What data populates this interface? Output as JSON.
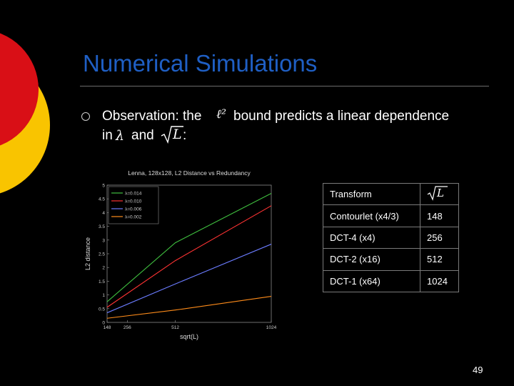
{
  "slide": {
    "title": "Numerical Simulations",
    "page_number": "49",
    "colors": {
      "title": "#1f5fc4",
      "deco_red": "#d90f16",
      "deco_yellow": "#f9c400"
    }
  },
  "observation": {
    "bullet_icon": "hollow-circle-bullet",
    "line1_a": "Observation: the",
    "line1_math": "ℓ²",
    "line1_b": "bound predicts a linear dependence",
    "line2_a": "in",
    "line2_lambda": "λ",
    "line2_and": "and",
    "line2_sqrtL": "L",
    "line2_colon": ":"
  },
  "table": {
    "header": {
      "transform": "Transform",
      "sqrtL": "L"
    },
    "rows": [
      {
        "transform": "Contourlet (x4/3)",
        "value": "148"
      },
      {
        "transform": "DCT-4 (x4)",
        "value": "256"
      },
      {
        "transform": "DCT-2 (x16)",
        "value": "512"
      },
      {
        "transform": "DCT-1 (x64)",
        "value": "1024"
      }
    ]
  },
  "chart_data": {
    "type": "line",
    "title": "Lenna, 128x128, L2 Distance vs Redundancy",
    "xlabel": "sqrt(L)",
    "ylabel": "L2 distance",
    "xticks": [
      "148",
      "256",
      "512",
      "1024"
    ],
    "yticks": [
      "0",
      "0.5",
      "1",
      "1.5",
      "2",
      "2.5",
      "3",
      "3.5",
      "4",
      "4.5",
      "5"
    ],
    "x": [
      148,
      512,
      1024
    ],
    "ylim": [
      0,
      5
    ],
    "legend_position": "top-left",
    "series": [
      {
        "name": "λ=0.014",
        "color": "#3fbf3f",
        "values": [
          0.75,
          2.9,
          4.7
        ]
      },
      {
        "name": "λ=0.010",
        "color": "#ff3333",
        "values": [
          0.55,
          2.25,
          4.25
        ]
      },
      {
        "name": "λ=0.006",
        "color": "#6b7cff",
        "values": [
          0.35,
          1.4,
          2.85
        ]
      },
      {
        "name": "λ=0.002",
        "color": "#ff8c1a",
        "values": [
          0.15,
          0.45,
          0.95
        ]
      }
    ]
  }
}
